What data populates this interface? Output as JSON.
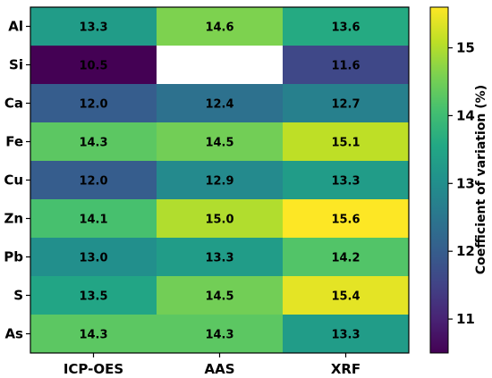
{
  "chart_data": {
    "type": "heatmap",
    "title": "",
    "xlabel": "",
    "ylabel": "",
    "columns": [
      "ICP-OES",
      "AAS",
      "XRF"
    ],
    "rows": [
      "Al",
      "Si",
      "Ca",
      "Fe",
      "Cu",
      "Zn",
      "Pb",
      "S",
      "As"
    ],
    "values": [
      [
        13.3,
        14.6,
        13.6
      ],
      [
        10.5,
        null,
        11.6
      ],
      [
        12.0,
        12.4,
        12.7
      ],
      [
        14.3,
        14.5,
        15.1
      ],
      [
        12.0,
        12.9,
        13.3
      ],
      [
        14.1,
        15.0,
        15.6
      ],
      [
        13.0,
        13.3,
        14.2
      ],
      [
        13.5,
        14.5,
        15.4
      ],
      [
        14.3,
        14.3,
        13.3
      ]
    ],
    "missing_color": "#ffffff",
    "colormap": "viridis",
    "colorbar": {
      "label": "Coefficient of variation (%)",
      "range": [
        10.5,
        15.6
      ],
      "ticks": [
        11,
        12,
        13,
        14,
        15
      ]
    }
  }
}
